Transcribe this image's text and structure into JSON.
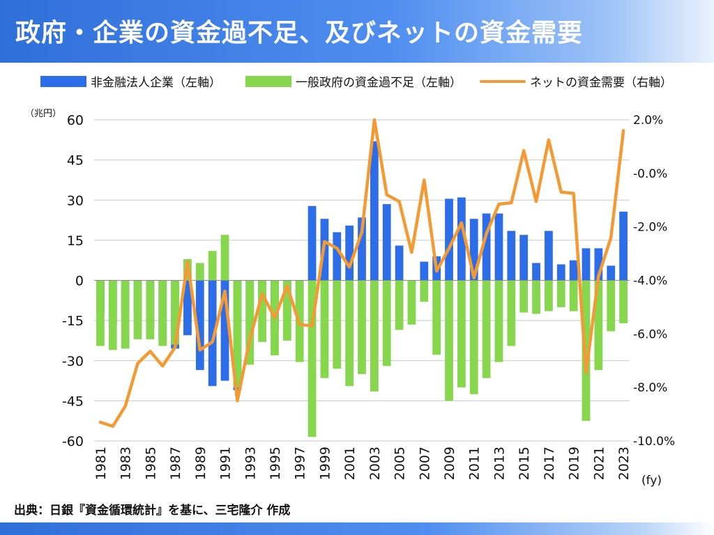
{
  "header": {
    "title": "政府・企業の資金過不足、及びネットの資金需要"
  },
  "legend": {
    "items": [
      {
        "label": "非金融法人企業（左軸）",
        "color": "#2d6ee8"
      },
      {
        "label": "一般政府の資金過不足（左軸）",
        "color": "#86d64e"
      },
      {
        "label": "ネットの資金需要（右軸）",
        "color": "#f39a35"
      }
    ]
  },
  "footer": {
    "source": "出典：日銀『資金循環統計』を基に、三宅隆介 作成"
  },
  "chart_data": {
    "type": "bar",
    "left_unit": "（兆円）",
    "x_unit": "(fy)",
    "left_ticks": [
      "60",
      "45",
      "30",
      "15",
      "0",
      "-15",
      "-30",
      "-45",
      "-60"
    ],
    "right_ticks": [
      "2.0%",
      "-0.0%",
      "-2.0%",
      "-4.0%",
      "-6.0%",
      "-8.0%",
      "-10.0%"
    ],
    "x_ticks": [
      "1981",
      "1983",
      "1985",
      "1987",
      "1989",
      "1991",
      "1993",
      "1995",
      "1997",
      "1999",
      "2001",
      "2003",
      "2005",
      "2007",
      "2009",
      "2011",
      "2013",
      "2015",
      "2017",
      "2019",
      "2021",
      "2023"
    ],
    "ylim_left": [
      -60,
      60
    ],
    "ylim_right": [
      -10,
      2
    ],
    "grid": "horizontal",
    "years": [
      1981,
      1982,
      1983,
      1984,
      1985,
      1986,
      1987,
      1988,
      1989,
      1990,
      1991,
      1992,
      1993,
      1994,
      1995,
      1996,
      1997,
      1998,
      1999,
      2000,
      2001,
      2002,
      2003,
      2004,
      2005,
      2006,
      2007,
      2008,
      2009,
      2010,
      2011,
      2012,
      2013,
      2014,
      2015,
      2016,
      2017,
      2018,
      2019,
      2020,
      2021,
      2022,
      2023
    ],
    "series": [
      {
        "name": "非金融法人企業（左軸）",
        "kind": "bar",
        "axis": "left",
        "color": "#2d6ee8",
        "values": [
          -12.5,
          -16.5,
          -12.5,
          -14.5,
          -18.5,
          -23,
          -25.5,
          -20.5,
          -33.5,
          -39.5,
          -37.5,
          -41,
          -23.5,
          -11,
          -18.5,
          -14.5,
          -10.5,
          27.8,
          23,
          18,
          20.5,
          23.5,
          52,
          28.5,
          13,
          -1.5,
          7,
          9,
          30.5,
          31,
          23,
          25,
          25,
          18.5,
          17,
          6.5,
          18.5,
          6,
          7.5,
          12,
          12,
          5.5,
          25.7
        ]
      },
      {
        "name": "一般政府の資金過不足（左軸）",
        "kind": "bar",
        "axis": "left",
        "color": "#86d64e",
        "values": [
          -24.5,
          -26,
          -25.5,
          -22,
          -22,
          -24.5,
          -24,
          8,
          6.5,
          11,
          17,
          -40,
          -31.5,
          -23,
          -28,
          -22.5,
          -30.5,
          -58.5,
          -36.5,
          -33,
          -39.5,
          -35,
          -41.5,
          -32,
          -18.5,
          -16.5,
          -8,
          -27.8,
          -45,
          -40,
          -42.5,
          -36.5,
          -30.5,
          -24.5,
          -12,
          -12.5,
          -11.5,
          -10,
          -11.5,
          -52.5,
          -33.5,
          -19,
          -16
        ]
      },
      {
        "name": "ネットの資金需要（右軸）",
        "kind": "line",
        "axis": "right",
        "color": "#f39a35",
        "values": [
          -9.3,
          -9.45,
          -8.7,
          -7.1,
          -6.65,
          -7.2,
          -6.5,
          -3.3,
          -6.6,
          -6.3,
          -4.4,
          -8.5,
          -6.2,
          -4.5,
          -5.4,
          -4.2,
          -5.65,
          -5.7,
          -2.55,
          -2.8,
          -3.5,
          -2.2,
          2.0,
          -0.8,
          -1.05,
          -2.95,
          -0.25,
          -3.65,
          -2.8,
          -1.85,
          -3.9,
          -2.25,
          -1.15,
          -1.1,
          0.85,
          -1.05,
          1.25,
          -0.7,
          -0.75,
          -7.45,
          -3.85,
          -2.4,
          1.6
        ]
      }
    ]
  }
}
